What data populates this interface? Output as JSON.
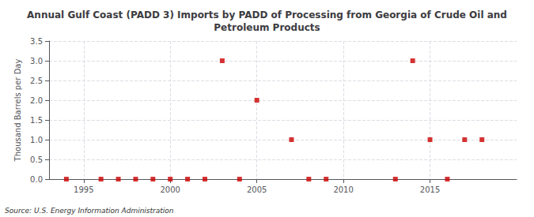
{
  "chart_data": {
    "type": "scatter",
    "title": "Annual Gulf Coast (PADD 3) Imports by PADD of Processing from Georgia of Crude Oil and\nPetroleum Products",
    "ylabel": "Thousand Barrels per Day",
    "annotation": "Source: U.S. Energy Information Administration",
    "color": "#cc0000",
    "marker": "square",
    "grid": true,
    "xlim": [
      1993,
      2020
    ],
    "xticks": [
      1995,
      2000,
      2005,
      2010,
      2015
    ],
    "ylim": [
      0.0,
      3.5
    ],
    "yticks": [
      {
        "value": 0.0,
        "label": "0.0"
      },
      0.5,
      {
        "value": 1.0,
        "label": "1.0"
      },
      1.5,
      {
        "value": 2.0,
        "label": "2.0"
      },
      2.5,
      {
        "value": 3.0,
        "label": "3.0"
      },
      3.5
    ],
    "x": [
      1994,
      1996,
      1997,
      1998,
      1999,
      2000,
      2001,
      2002,
      2003,
      2004,
      2005,
      2007,
      2008,
      2009,
      2013,
      2014,
      2015,
      2016,
      2017,
      2018
    ],
    "values": [
      0,
      0,
      0,
      0,
      0,
      0,
      0,
      0,
      3,
      0,
      2,
      1,
      0,
      0,
      0,
      3,
      1,
      0,
      1,
      1
    ]
  }
}
